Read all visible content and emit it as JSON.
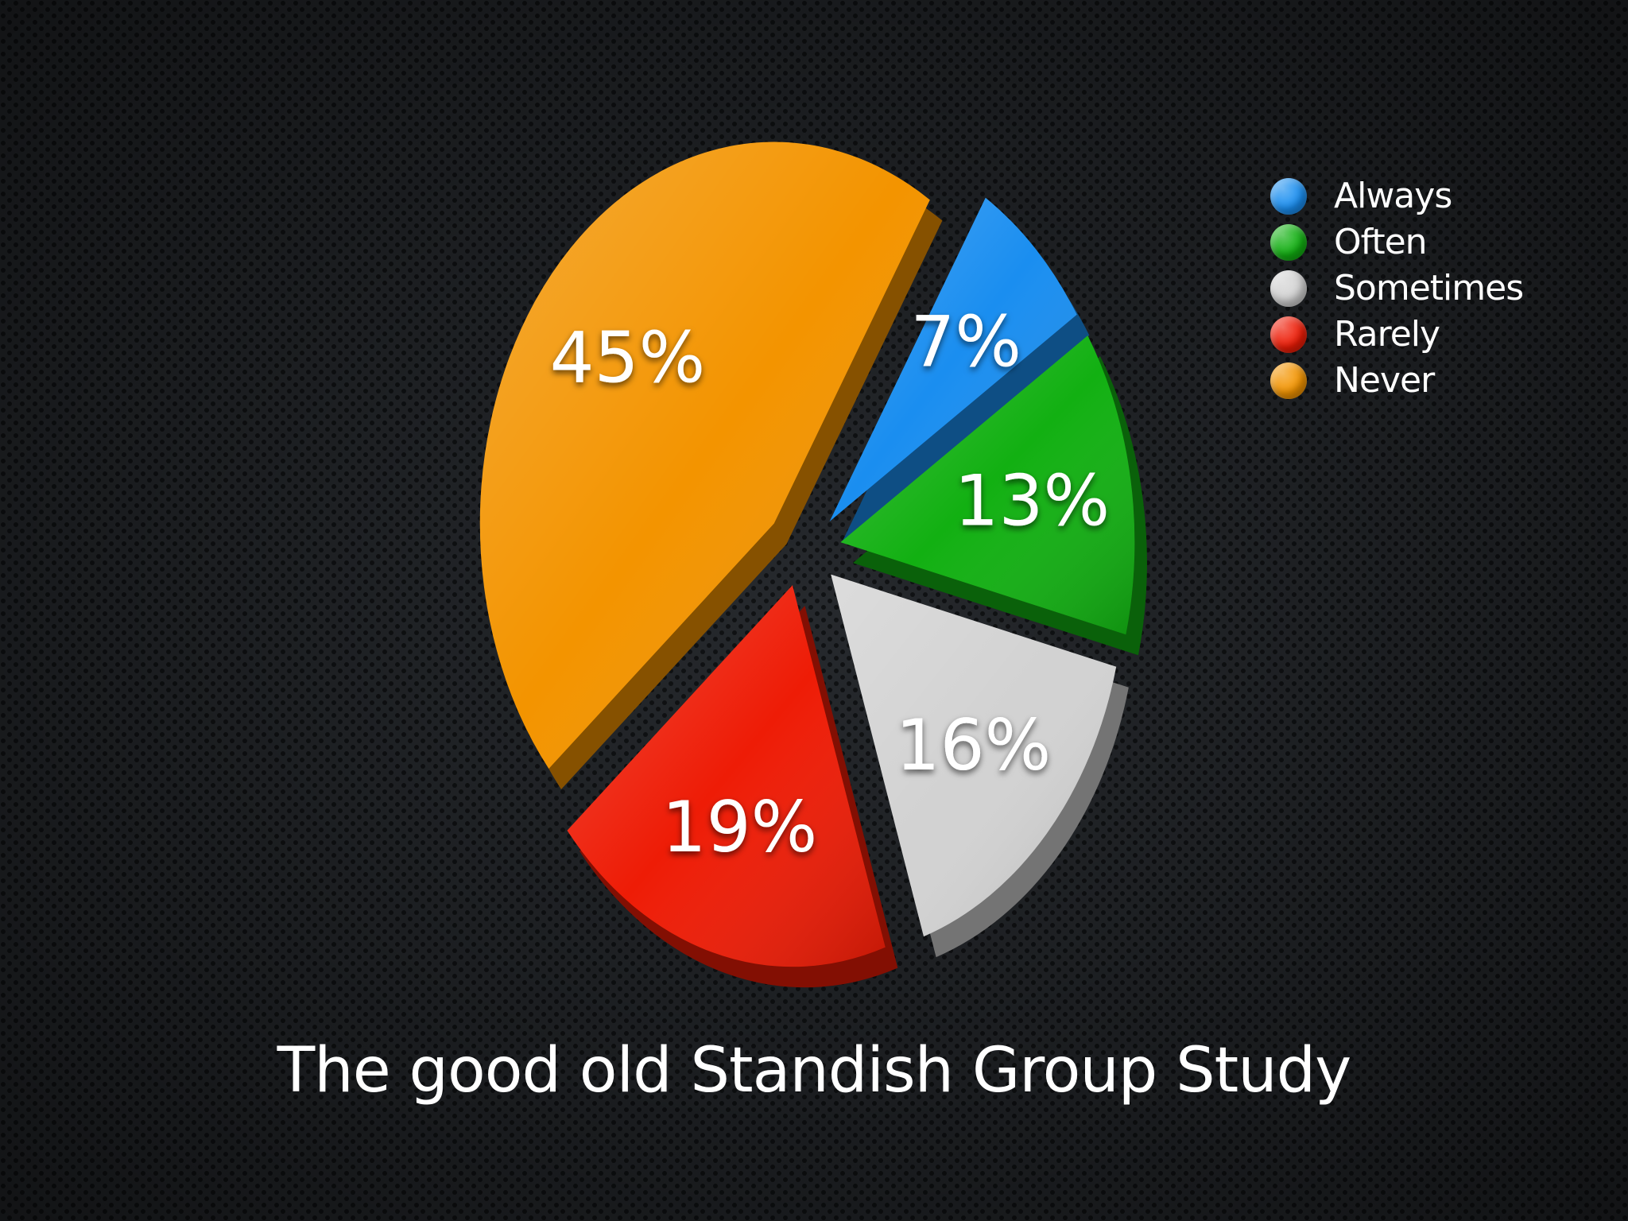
{
  "chart_data": {
    "type": "pie",
    "title": "The good old Standish Group Study",
    "legend_position": "top-right",
    "slices": [
      {
        "name": "Always",
        "value": 7,
        "label": "7%",
        "color": "#1a8ef0"
      },
      {
        "name": "Often",
        "value": 13,
        "label": "13%",
        "color": "#12b012"
      },
      {
        "name": "Sometimes",
        "value": 16,
        "label": "16%",
        "color": "#d2d2d2"
      },
      {
        "name": "Rarely",
        "value": 19,
        "label": "19%",
        "color": "#ee1c06"
      },
      {
        "name": "Never",
        "value": 45,
        "label": "45%",
        "color": "#f39400"
      }
    ]
  },
  "colors": {
    "background": "#222427",
    "text": "#ffffff"
  }
}
